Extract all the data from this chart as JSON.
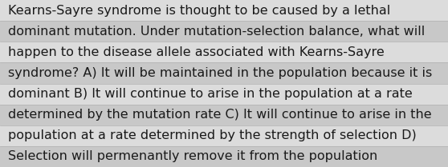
{
  "lines": [
    "Kearns-Sayre syndrome is thought to be caused by a lethal",
    "dominant mutation. Under mutation-selection balance, what will",
    "happen to the disease allele associated with Kearns-Sayre",
    "syndrome? A) It will be maintained in the population because it is",
    "dominant B) It will continue to arise in the population at a rate",
    "determined by the mutation rate C) It will continue to arise in the",
    "population at a rate determined by the strength of selection D)",
    "Selection will permenantly remove it from the population"
  ],
  "background_color": "#d4d4d4",
  "stripe_color_light": "#dcdcdc",
  "stripe_color_dark": "#c8c8c8",
  "separator_color": "#b0b0b0",
  "text_color": "#1a1a1a",
  "font_size": 11.5,
  "fig_width": 5.58,
  "fig_height": 2.09
}
